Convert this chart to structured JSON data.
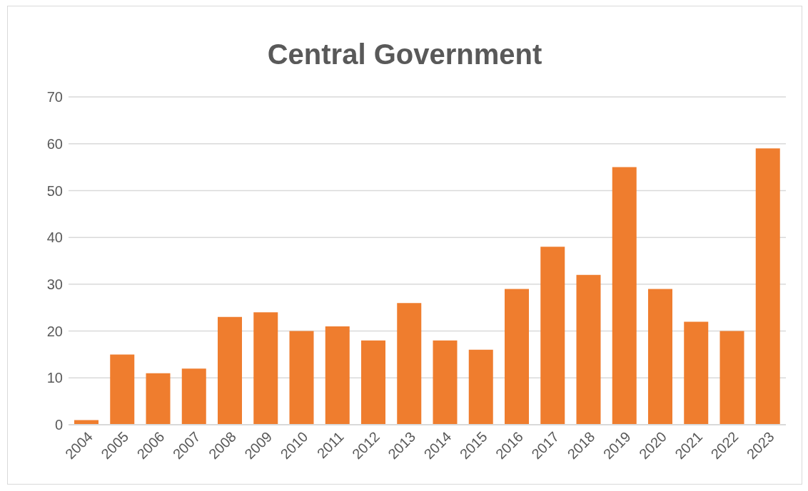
{
  "chart_data": {
    "type": "bar",
    "title": "Central Government",
    "categories": [
      "2004",
      "2005",
      "2006",
      "2007",
      "2008",
      "2009",
      "2010",
      "2011",
      "2012",
      "2013",
      "2014",
      "2015",
      "2016",
      "2017",
      "2018",
      "2019",
      "2020",
      "2021",
      "2022",
      "2023"
    ],
    "values": [
      1,
      15,
      11,
      12,
      23,
      24,
      20,
      21,
      18,
      26,
      18,
      16,
      29,
      38,
      32,
      55,
      29,
      22,
      20,
      59
    ],
    "color": "#ef7d2e",
    "ylim": [
      0,
      70
    ],
    "yticks": [
      0,
      10,
      20,
      30,
      40,
      50,
      60,
      70
    ],
    "grid": "y"
  }
}
